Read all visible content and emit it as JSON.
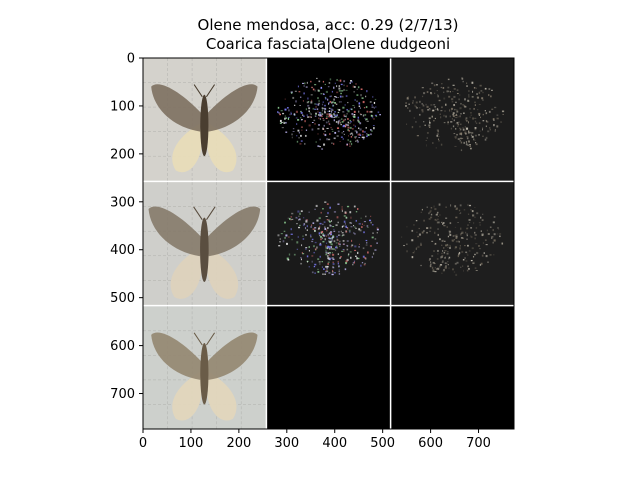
{
  "chart_data": {
    "type": "image-grid",
    "title": "Olene mendosa, acc: 0.29 (2/7/13)",
    "subtitle": "Coarica fasciata|Olene dudgeoni",
    "xlim": [
      0,
      774
    ],
    "ylim": [
      774,
      0
    ],
    "xticks": [
      0,
      100,
      200,
      300,
      400,
      500,
      600,
      700
    ],
    "yticks": [
      0,
      100,
      200,
      300,
      400,
      500,
      600,
      700
    ],
    "grid": {
      "rows": 3,
      "cols": 3,
      "cell_size": 256,
      "separator": 3
    },
    "cells": [
      {
        "row": 0,
        "col": 0,
        "kind": "moth-photo",
        "bg": "#d4d2cc",
        "wing": "#7d7060",
        "hind": "#e8dcb8",
        "body": "#4a3e30",
        "scale": 1.0,
        "grid_lines": true
      },
      {
        "row": 0,
        "col": 1,
        "kind": "saliency-color",
        "bg": "#000000",
        "speck": "#ffffff",
        "density": 0.9
      },
      {
        "row": 0,
        "col": 2,
        "kind": "saliency-mono",
        "bg": "#1c1c1c",
        "speck": "#8a8070",
        "density": 0.6
      },
      {
        "row": 1,
        "col": 0,
        "kind": "moth-photo",
        "bg": "#cfcfcb",
        "wing": "#857a6a",
        "hind": "#ddd2bc",
        "body": "#5a4e40",
        "scale": 1.05,
        "grid_lines": true
      },
      {
        "row": 1,
        "col": 1,
        "kind": "saliency-color",
        "bg": "#1a1a1a",
        "speck": "#9a90a0",
        "density": 0.75
      },
      {
        "row": 1,
        "col": 2,
        "kind": "saliency-mono",
        "bg": "#1e1e1e",
        "speck": "#6e6658",
        "density": 0.55
      },
      {
        "row": 2,
        "col": 0,
        "kind": "moth-photo",
        "bg": "#cdd0cc",
        "wing": "#948670",
        "hind": "#e2d6bc",
        "body": "#6a5c48",
        "scale": 1.0,
        "grid_lines": true
      },
      {
        "row": 2,
        "col": 1,
        "kind": "empty",
        "bg": "#000000"
      },
      {
        "row": 2,
        "col": 2,
        "kind": "empty",
        "bg": "#000000"
      }
    ]
  }
}
